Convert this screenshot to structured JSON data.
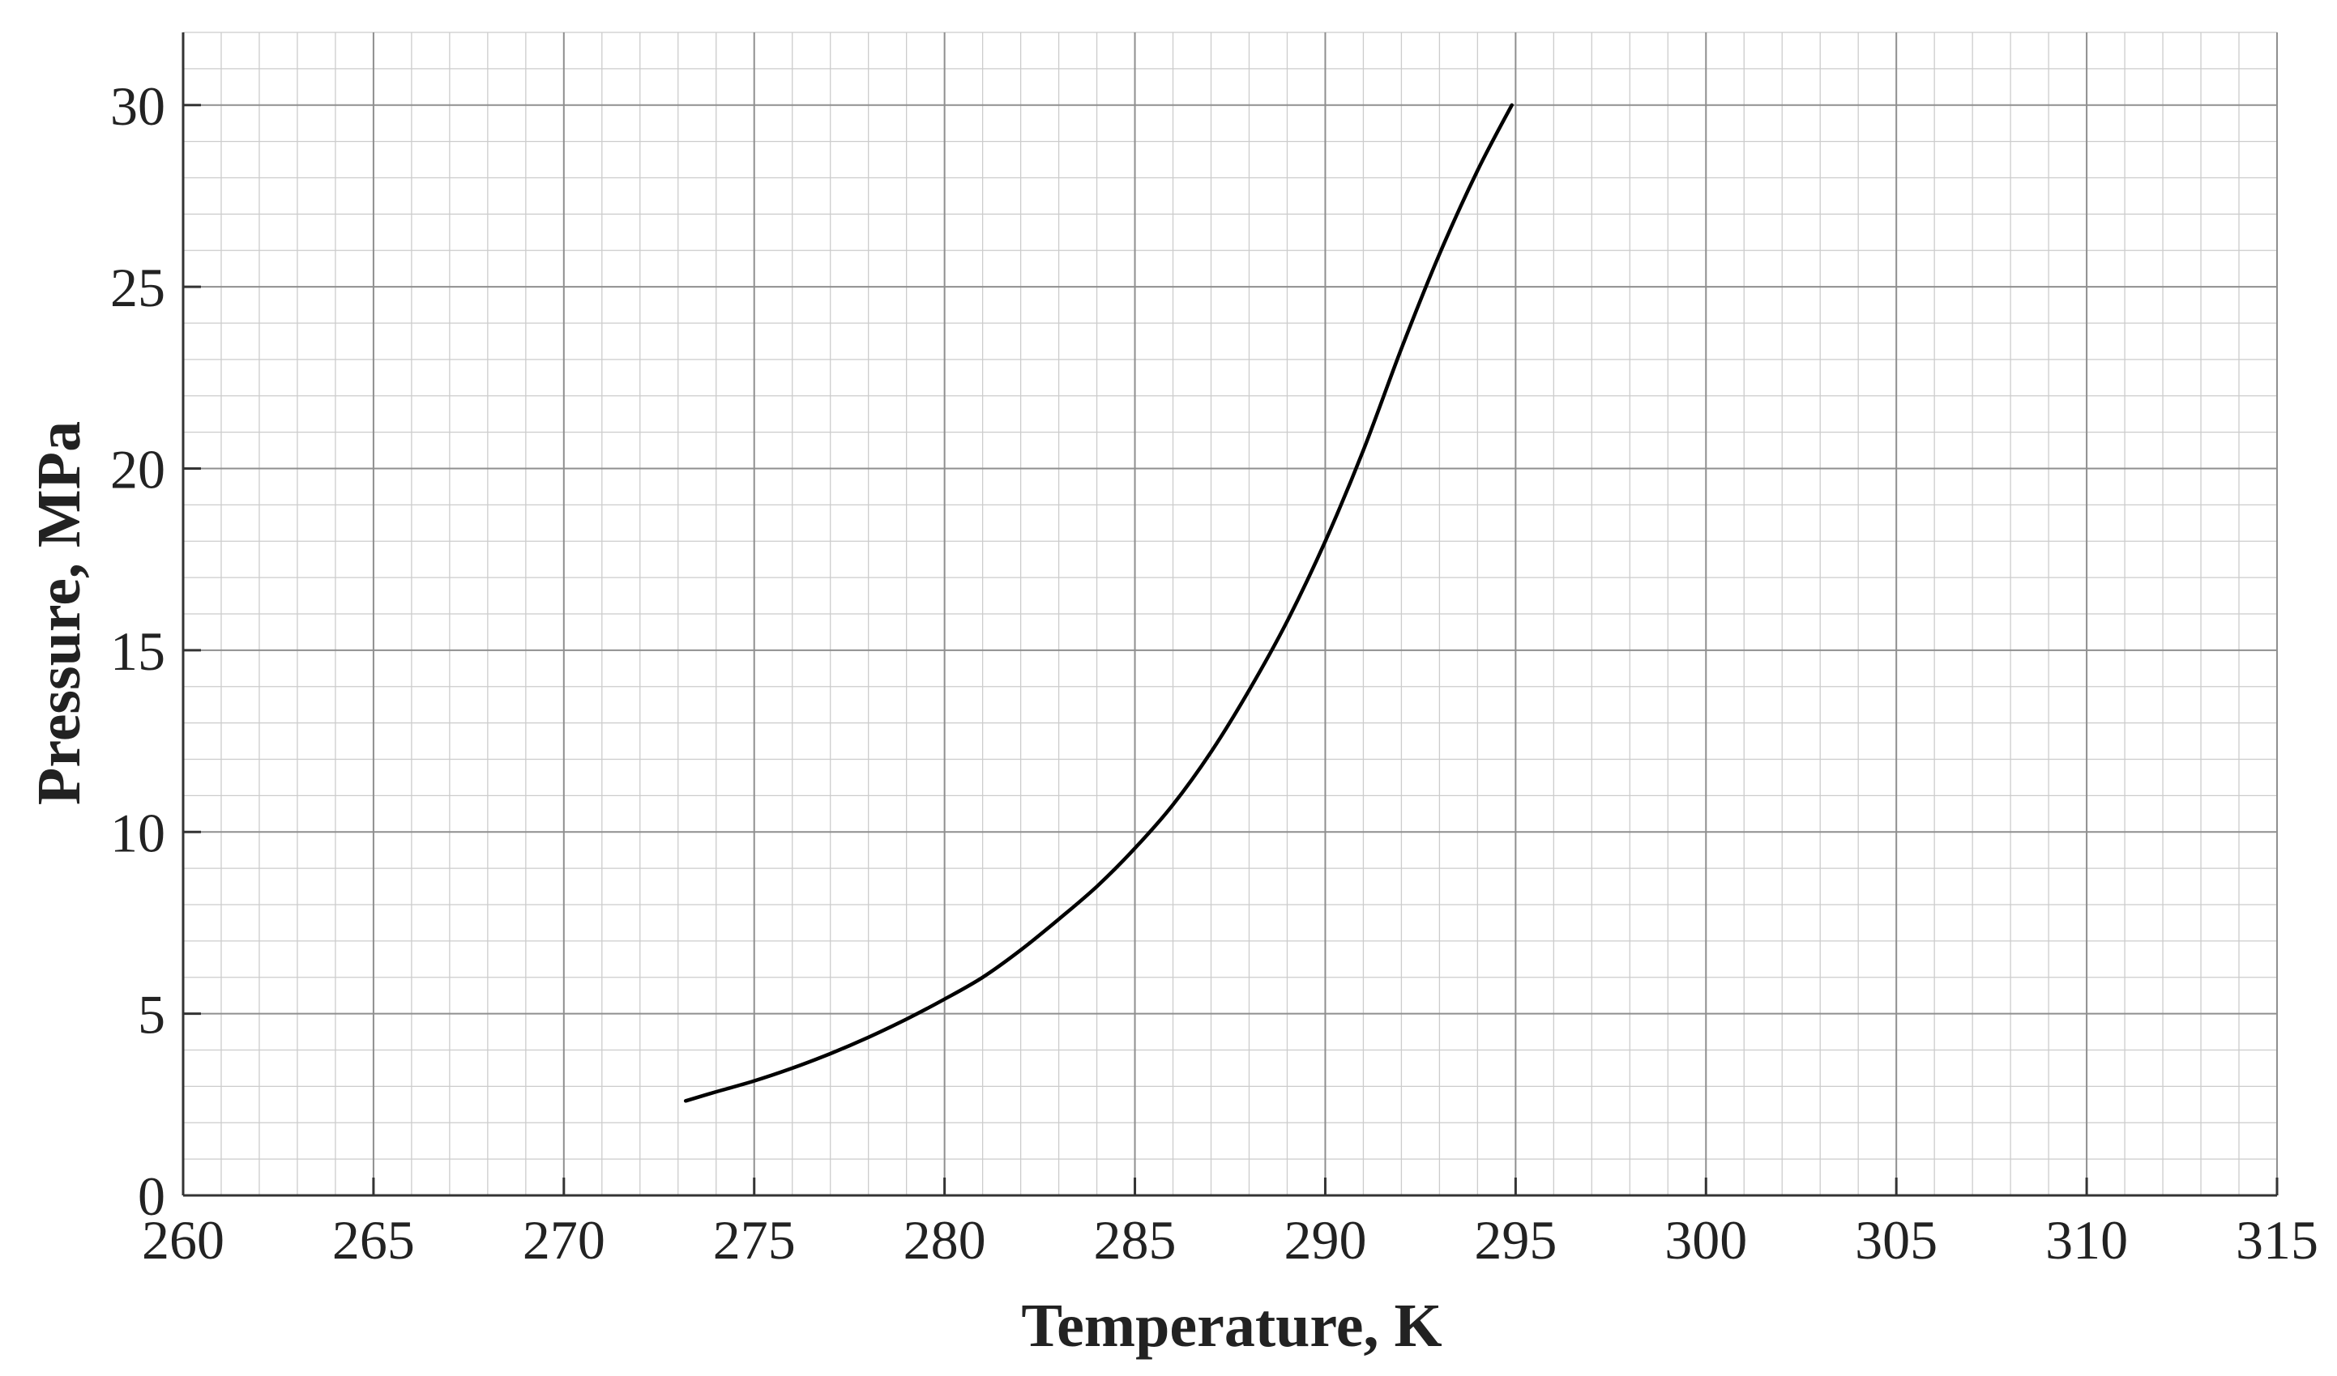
{
  "chart_data": {
    "type": "line",
    "title": "",
    "xlabel": "Temperature, K",
    "ylabel": "Pressure, MPa",
    "xlim": [
      260,
      315
    ],
    "ylim": [
      0,
      32
    ],
    "x_ticks": [
      "260",
      "265",
      "270",
      "275",
      "280",
      "285",
      "290",
      "295",
      "300",
      "305",
      "310",
      "315"
    ],
    "y_ticks": [
      "0",
      "5",
      "10",
      "15",
      "20",
      "25",
      "30"
    ],
    "grid": true,
    "minor_grid": true,
    "series": [
      {
        "color": "#000000",
        "x": [
          273.2,
          274.0,
          275.0,
          276.0,
          277.0,
          278.0,
          279.0,
          280.0,
          281.0,
          282.0,
          283.0,
          284.0,
          285.0,
          286.0,
          287.0,
          288.0,
          289.0,
          290.0,
          291.0,
          292.0,
          293.0,
          294.0,
          294.9
        ],
        "y": [
          2.6,
          2.85,
          3.15,
          3.5,
          3.9,
          4.35,
          4.85,
          5.4,
          6.0,
          6.75,
          7.6,
          8.5,
          9.55,
          10.75,
          12.2,
          13.9,
          15.8,
          18.0,
          20.5,
          23.3,
          25.9,
          28.2,
          30.0
        ]
      }
    ]
  }
}
